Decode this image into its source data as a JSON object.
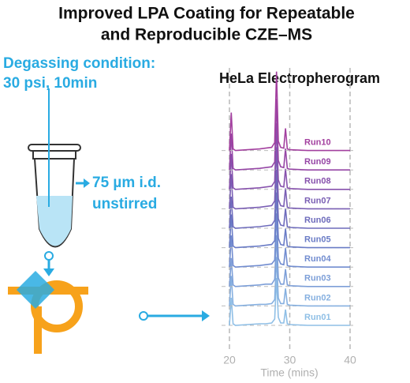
{
  "header": {
    "line1": "Improved LPA Coating for Repeatable",
    "line2": "and Reproducible CZE–MS"
  },
  "conditions": {
    "degassing_label": "Degassing condition:",
    "degassing_value": "30 psi, 10min",
    "capillary_id": "75 µm i.d.",
    "stirring": "unstirred"
  },
  "chart_data": {
    "type": "line",
    "title": "HeLa Electropherogram",
    "x_label": "Time (mins)",
    "xlim": [
      20,
      40
    ],
    "xticks": [
      20,
      30,
      40
    ],
    "grid": true,
    "x": [
      20,
      20.3,
      20.6,
      21,
      23,
      25,
      26,
      27,
      27.5,
      27.8,
      28.1,
      28.5,
      29,
      29.3,
      29.6,
      30,
      33,
      36,
      40
    ],
    "series": [
      {
        "name": "Run01",
        "color": "#8fbfe6",
        "values": [
          0,
          35,
          2,
          0,
          1,
          2,
          2,
          3,
          8,
          60,
          10,
          3,
          3,
          20,
          2,
          1,
          0,
          0,
          0
        ]
      },
      {
        "name": "Run02",
        "color": "#86b0e0",
        "values": [
          0,
          38,
          2,
          0,
          1,
          2,
          2,
          3,
          8,
          62,
          10,
          3,
          3,
          22,
          2,
          1,
          0,
          0,
          0
        ]
      },
      {
        "name": "Run03",
        "color": "#7d9fd8",
        "values": [
          0,
          36,
          2,
          0,
          1,
          2,
          3,
          3,
          9,
          65,
          11,
          3,
          3,
          22,
          2,
          1,
          0,
          0,
          0
        ]
      },
      {
        "name": "Run04",
        "color": "#728dd0",
        "values": [
          0,
          40,
          2,
          0,
          1,
          2,
          3,
          4,
          9,
          68,
          11,
          4,
          3,
          24,
          2,
          1,
          0,
          0,
          0
        ]
      },
      {
        "name": "Run05",
        "color": "#6a7cc6",
        "values": [
          0,
          42,
          2,
          0,
          1,
          2,
          3,
          4,
          9,
          70,
          12,
          4,
          3,
          24,
          2,
          1,
          0,
          0,
          0
        ]
      },
      {
        "name": "Run06",
        "color": "#6e6cbc",
        "values": [
          0,
          40,
          2,
          0,
          1,
          2,
          3,
          4,
          10,
          74,
          12,
          4,
          3,
          25,
          2,
          1,
          0,
          0,
          0
        ]
      },
      {
        "name": "Run07",
        "color": "#7a5fb4",
        "values": [
          0,
          44,
          2,
          0,
          1,
          2,
          3,
          4,
          10,
          78,
          12,
          4,
          3,
          26,
          2,
          1,
          0,
          0,
          0
        ]
      },
      {
        "name": "Run08",
        "color": "#8752ad",
        "values": [
          0,
          45,
          2,
          0,
          1,
          2,
          3,
          4,
          10,
          84,
          12,
          4,
          3,
          26,
          2,
          1,
          0,
          0,
          0
        ]
      },
      {
        "name": "Run09",
        "color": "#9647a6",
        "values": [
          0,
          46,
          2,
          0,
          1,
          2,
          3,
          4,
          10,
          90,
          12,
          4,
          3,
          27,
          2,
          1,
          0,
          0,
          0
        ]
      },
      {
        "name": "Run10",
        "color": "#a3409f",
        "values": [
          0,
          48,
          2,
          0,
          1,
          2,
          3,
          4,
          10,
          100,
          12,
          4,
          3,
          28,
          2,
          1,
          0,
          0,
          0
        ]
      }
    ]
  }
}
